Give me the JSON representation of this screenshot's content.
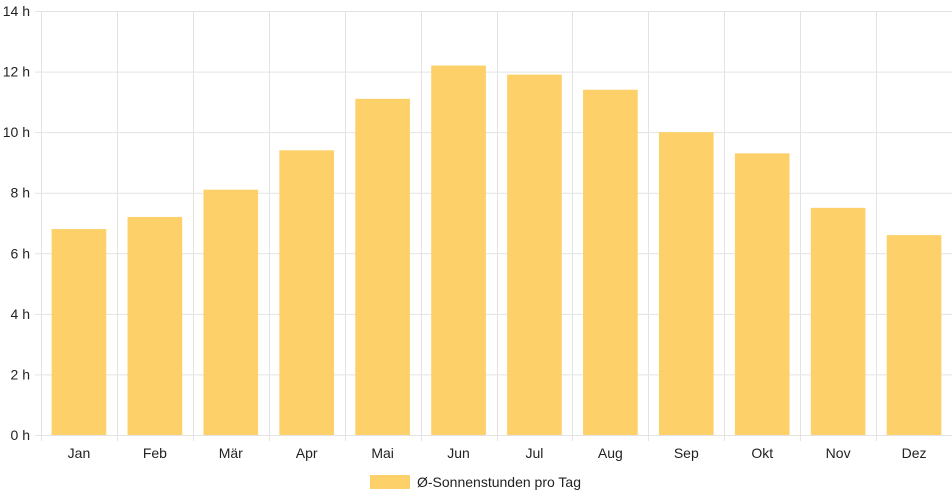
{
  "chart_data": {
    "type": "bar",
    "title": "",
    "xlabel": "",
    "ylabel": "",
    "categories": [
      "Jan",
      "Feb",
      "Mär",
      "Apr",
      "Mai",
      "Jun",
      "Jul",
      "Aug",
      "Sep",
      "Okt",
      "Nov",
      "Dez"
    ],
    "series": [
      {
        "name": "Ø-Sonnenstunden pro Tag",
        "values": [
          6.8,
          7.2,
          8.1,
          9.4,
          11.1,
          12.2,
          11.9,
          11.4,
          10.0,
          9.3,
          7.5,
          6.6
        ],
        "color": "#fdd069"
      }
    ],
    "ylim": [
      0,
      14
    ],
    "yticks": [
      "0 h",
      "2 h",
      "4 h",
      "6 h",
      "8 h",
      "10 h",
      "12 h",
      "14 h"
    ],
    "grid": true,
    "legend_position": "bottom"
  }
}
